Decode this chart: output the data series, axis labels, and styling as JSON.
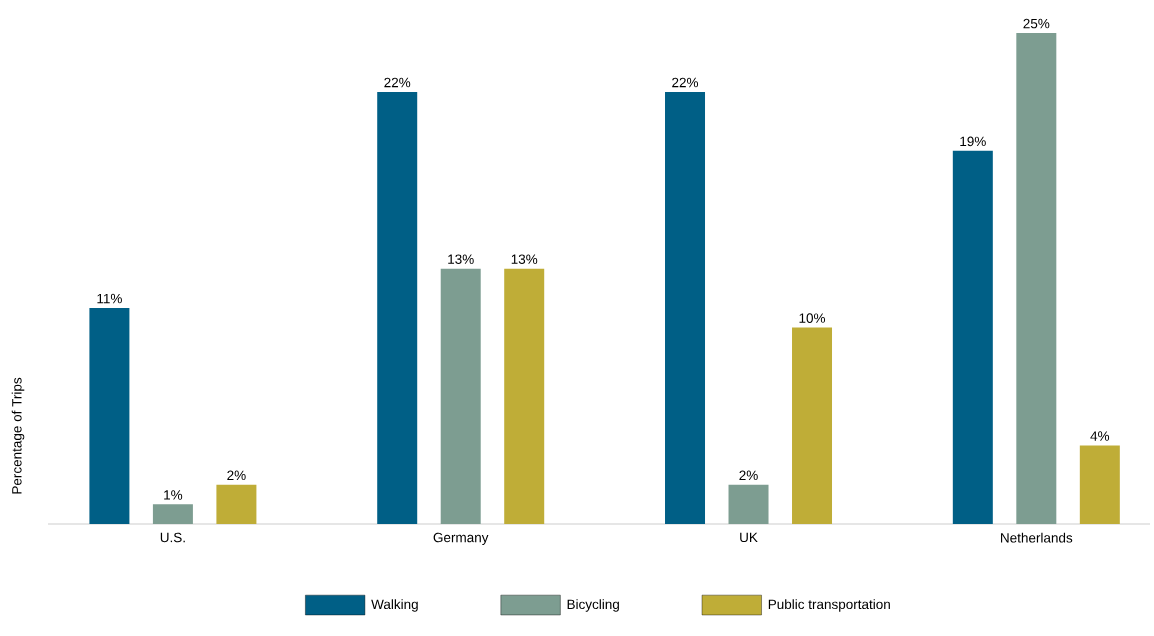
{
  "chart_data": {
    "type": "bar",
    "ylabel": "Percentage of Trips",
    "legend": "bottom",
    "categories": [
      "U.S.",
      "Germany",
      "UK",
      "Netherlands"
    ],
    "series": [
      {
        "name": "Walking",
        "color": "#005f86",
        "values": [
          11,
          22,
          22,
          19
        ],
        "value_labels": [
          "11%",
          "22%",
          "22%",
          "19%"
        ]
      },
      {
        "name": "Bicycling",
        "color": "#7d9d91",
        "values": [
          1,
          13,
          2,
          25
        ],
        "value_labels": [
          "1%",
          "13%",
          "2%",
          "25%"
        ]
      },
      {
        "name": "Public transportation",
        "color": "#bfad37",
        "values": [
          2,
          13,
          10,
          4
        ],
        "value_labels": [
          "2%",
          "13%",
          "10%",
          "4%"
        ]
      }
    ]
  }
}
